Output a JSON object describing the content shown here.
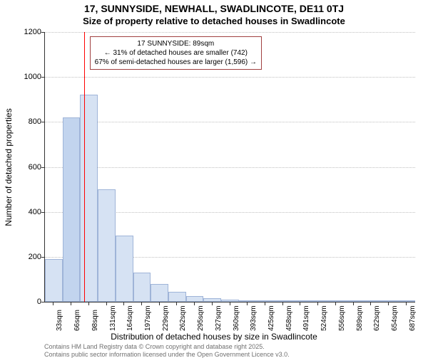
{
  "chart": {
    "type": "histogram",
    "title_line1": "17, SUNNYSIDE, NEWHALL, SWADLINCOTE, DE11 0TJ",
    "title_line2": "Size of property relative to detached houses in Swadlincote",
    "x_axis_label": "Distribution of detached houses by size in Swadlincote",
    "y_axis_label": "Number of detached properties",
    "background_color": "#ffffff",
    "grid_color": "#bfbfbf",
    "axis_color": "#333333",
    "title_color": "#000000",
    "title_fontsize_line1": 14,
    "title_fontsize_line2": 13,
    "label_fontsize": 12,
    "tick_fontsize": 11,
    "ylim_min": 0,
    "ylim_max": 1200,
    "ytick_step": 200,
    "y_ticks": [
      0,
      200,
      400,
      600,
      800,
      1000,
      1200
    ],
    "x_tick_labels": [
      "33sqm",
      "66sqm",
      "98sqm",
      "131sqm",
      "164sqm",
      "197sqm",
      "229sqm",
      "262sqm",
      "295sqm",
      "327sqm",
      "360sqm",
      "393sqm",
      "425sqm",
      "458sqm",
      "491sqm",
      "524sqm",
      "556sqm",
      "589sqm",
      "622sqm",
      "654sqm",
      "687sqm"
    ],
    "bars": [
      {
        "value": 190,
        "color": "#d6e2f3",
        "border": "#9fb4d8"
      },
      {
        "value": 820,
        "color": "#c2d4ee",
        "border": "#9fb4d8"
      },
      {
        "value": 920,
        "color": "#d6e2f3",
        "border": "#9fb4d8"
      },
      {
        "value": 500,
        "color": "#d6e2f3",
        "border": "#9fb4d8"
      },
      {
        "value": 295,
        "color": "#d6e2f3",
        "border": "#9fb4d8"
      },
      {
        "value": 130,
        "color": "#d6e2f3",
        "border": "#9fb4d8"
      },
      {
        "value": 80,
        "color": "#d6e2f3",
        "border": "#9fb4d8"
      },
      {
        "value": 45,
        "color": "#d6e2f3",
        "border": "#9fb4d8"
      },
      {
        "value": 25,
        "color": "#d6e2f3",
        "border": "#9fb4d8"
      },
      {
        "value": 15,
        "color": "#d6e2f3",
        "border": "#9fb4d8"
      },
      {
        "value": 10,
        "color": "#d6e2f3",
        "border": "#9fb4d8"
      },
      {
        "value": 6,
        "color": "#d6e2f3",
        "border": "#9fb4d8"
      },
      {
        "value": 4,
        "color": "#d6e2f3",
        "border": "#9fb4d8"
      },
      {
        "value": 3,
        "color": "#d6e2f3",
        "border": "#9fb4d8"
      },
      {
        "value": 2,
        "color": "#d6e2f3",
        "border": "#9fb4d8"
      },
      {
        "value": 2,
        "color": "#d6e2f3",
        "border": "#9fb4d8"
      },
      {
        "value": 1,
        "color": "#d6e2f3",
        "border": "#9fb4d8"
      },
      {
        "value": 1,
        "color": "#d6e2f3",
        "border": "#9fb4d8"
      },
      {
        "value": 1,
        "color": "#d6e2f3",
        "border": "#9fb4d8"
      },
      {
        "value": 1,
        "color": "#d6e2f3",
        "border": "#9fb4d8"
      },
      {
        "value": 1,
        "color": "#d6e2f3",
        "border": "#9fb4d8"
      }
    ],
    "marker": {
      "position_sqm": 89,
      "color": "#ff0000"
    },
    "annotation": {
      "line1": "17 SUNNYSIDE: 89sqm",
      "line2": "← 31% of detached houses are smaller (742)",
      "line3": "67% of semi-detached houses are larger (1,596) →",
      "border_color": "#a04040",
      "background_color": "#ffffff",
      "fontsize": 10
    },
    "footer": {
      "line1": "Contains HM Land Registry data © Crown copyright and database right 2025.",
      "line2": "Contains public sector information licensed under the Open Government Licence v3.0.",
      "color": "#707070",
      "fontsize": 9
    }
  }
}
